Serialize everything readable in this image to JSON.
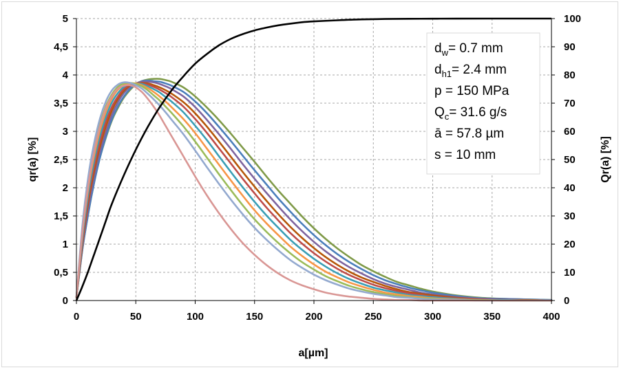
{
  "chart_data": {
    "type": "line",
    "xlabel": "a[µm]",
    "ylabel": "qr(a) [%]",
    "y2label": "Qr(a) [%]",
    "xlim": [
      0,
      400
    ],
    "ylim": [
      0,
      5
    ],
    "y2lim": [
      0,
      100
    ],
    "x_ticks": [
      "0",
      "50",
      "100",
      "150",
      "200",
      "250",
      "300",
      "350",
      "400"
    ],
    "y_ticks": [
      "0",
      "0,5",
      "1",
      "1,5",
      "2",
      "2,5",
      "3",
      "3,5",
      "4",
      "4,5",
      "5"
    ],
    "y2_ticks": [
      "0",
      "10",
      "20",
      "30",
      "40",
      "50",
      "60",
      "70",
      "80",
      "90",
      "100"
    ],
    "grid": true,
    "annotation": {
      "lines": [
        {
          "main": "d",
          "sub": "w",
          "rest": "= 0.7 mm"
        },
        {
          "main": "d",
          "sub": "h1",
          "rest": "= 2.4 mm"
        },
        {
          "main": "p = 150 MPa",
          "sub": "",
          "rest": ""
        },
        {
          "main": "Q",
          "sub": "c",
          "rest": "= 31.6 g/s"
        },
        {
          "main": "ā = 57.8 µm",
          "sub": "",
          "rest": ""
        },
        {
          "main": "s = 10 mm",
          "sub": "",
          "rest": ""
        }
      ]
    },
    "density_series": {
      "axis": "left",
      "x": [
        0,
        5,
        10,
        15,
        20,
        25,
        30,
        35,
        40,
        45,
        50,
        55,
        60,
        65,
        70,
        75,
        80,
        90,
        100,
        110,
        120,
        130,
        140,
        150,
        160,
        170,
        180,
        190,
        200,
        210,
        220,
        230,
        240,
        250,
        260,
        270,
        280,
        290,
        300,
        320,
        340,
        360,
        380,
        400
      ],
      "curves": [
        {
          "color": "#7f9a48",
          "peak_x": 73,
          "peak_y": 3.93,
          "values": [
            0.05,
            0.9,
            1.55,
            2.1,
            2.55,
            2.9,
            3.2,
            3.42,
            3.6,
            3.73,
            3.83,
            3.89,
            3.92,
            3.93,
            3.93,
            3.91,
            3.88,
            3.78,
            3.62,
            3.42,
            3.2,
            2.96,
            2.71,
            2.46,
            2.2,
            1.95,
            1.72,
            1.49,
            1.28,
            1.09,
            0.92,
            0.77,
            0.63,
            0.52,
            0.42,
            0.33,
            0.27,
            0.21,
            0.16,
            0.09,
            0.05,
            0.03,
            0.02,
            0.01
          ]
        },
        {
          "color": "#4a7ebb",
          "peak_x": 70,
          "peak_y": 3.9,
          "values": [
            0.05,
            0.9,
            1.55,
            2.1,
            2.55,
            2.92,
            3.22,
            3.45,
            3.62,
            3.75,
            3.84,
            3.89,
            3.9,
            3.89,
            3.88,
            3.85,
            3.81,
            3.7,
            3.53,
            3.32,
            3.08,
            2.83,
            2.57,
            2.31,
            2.06,
            1.81,
            1.58,
            1.36,
            1.16,
            0.98,
            0.82,
            0.68,
            0.56,
            0.45,
            0.36,
            0.29,
            0.23,
            0.18,
            0.14,
            0.08,
            0.04,
            0.03,
            0.02,
            0.01
          ]
        },
        {
          "color": "#7e649e",
          "peak_x": 66,
          "peak_y": 3.88,
          "values": [
            0.05,
            0.95,
            1.65,
            2.2,
            2.65,
            3.0,
            3.3,
            3.52,
            3.68,
            3.79,
            3.85,
            3.88,
            3.88,
            3.87,
            3.84,
            3.8,
            3.75,
            3.62,
            3.43,
            3.2,
            2.95,
            2.69,
            2.42,
            2.16,
            1.91,
            1.67,
            1.44,
            1.23,
            1.04,
            0.87,
            0.72,
            0.59,
            0.48,
            0.38,
            0.3,
            0.24,
            0.19,
            0.14,
            0.11,
            0.06,
            0.03,
            0.02,
            0.01,
            0.0
          ]
        },
        {
          "color": "#b65708",
          "peak_x": 63,
          "peak_y": 3.86,
          "values": [
            0.05,
            1.0,
            1.75,
            2.3,
            2.75,
            3.1,
            3.38,
            3.58,
            3.72,
            3.81,
            3.85,
            3.86,
            3.85,
            3.82,
            3.78,
            3.73,
            3.67,
            3.52,
            3.32,
            3.08,
            2.82,
            2.55,
            2.28,
            2.02,
            1.77,
            1.53,
            1.31,
            1.11,
            0.93,
            0.77,
            0.63,
            0.51,
            0.41,
            0.33,
            0.26,
            0.2,
            0.15,
            0.12,
            0.09,
            0.05,
            0.02,
            0.01,
            0.01,
            0.0
          ]
        },
        {
          "color": "#be4b48",
          "peak_x": 60,
          "peak_y": 3.85,
          "values": [
            0.05,
            1.05,
            1.82,
            2.38,
            2.83,
            3.18,
            3.44,
            3.62,
            3.75,
            3.82,
            3.85,
            3.85,
            3.83,
            3.79,
            3.74,
            3.68,
            3.61,
            3.44,
            3.22,
            2.97,
            2.7,
            2.43,
            2.16,
            1.9,
            1.65,
            1.42,
            1.2,
            1.01,
            0.84,
            0.69,
            0.56,
            0.45,
            0.36,
            0.28,
            0.22,
            0.17,
            0.13,
            0.1,
            0.07,
            0.04,
            0.02,
            0.01,
            0.0,
            0.0
          ]
        },
        {
          "color": "#3a9eb5",
          "peak_x": 56,
          "peak_y": 3.85,
          "values": [
            0.05,
            1.1,
            1.9,
            2.48,
            2.93,
            3.27,
            3.52,
            3.68,
            3.79,
            3.84,
            3.85,
            3.84,
            3.8,
            3.75,
            3.69,
            3.61,
            3.53,
            3.34,
            3.1,
            2.84,
            2.56,
            2.28,
            2.01,
            1.75,
            1.51,
            1.29,
            1.08,
            0.9,
            0.74,
            0.6,
            0.48,
            0.38,
            0.3,
            0.23,
            0.18,
            0.14,
            0.1,
            0.08,
            0.06,
            0.03,
            0.01,
            0.01,
            0.0,
            0.0
          ]
        },
        {
          "color": "#f79646",
          "peak_x": 52,
          "peak_y": 3.85,
          "values": [
            0.05,
            1.18,
            2.0,
            2.58,
            3.03,
            3.36,
            3.59,
            3.74,
            3.82,
            3.85,
            3.85,
            3.82,
            3.77,
            3.7,
            3.62,
            3.53,
            3.43,
            3.22,
            2.97,
            2.69,
            2.41,
            2.13,
            1.86,
            1.6,
            1.37,
            1.16,
            0.96,
            0.79,
            0.64,
            0.51,
            0.41,
            0.32,
            0.25,
            0.19,
            0.14,
            0.11,
            0.08,
            0.06,
            0.04,
            0.02,
            0.01,
            0.0,
            0.0,
            0.0
          ]
        },
        {
          "color": "#9bbb59",
          "peak_x": 48,
          "peak_y": 3.86,
          "values": [
            0.05,
            1.25,
            2.1,
            2.7,
            3.14,
            3.45,
            3.66,
            3.79,
            3.85,
            3.86,
            3.84,
            3.8,
            3.73,
            3.64,
            3.55,
            3.44,
            3.33,
            3.09,
            2.82,
            2.53,
            2.24,
            1.96,
            1.69,
            1.44,
            1.22,
            1.02,
            0.84,
            0.68,
            0.55,
            0.43,
            0.34,
            0.26,
            0.2,
            0.15,
            0.11,
            0.08,
            0.06,
            0.04,
            0.03,
            0.01,
            0.01,
            0.0,
            0.0,
            0.0
          ]
        },
        {
          "color": "#93a9cf",
          "peak_x": 44,
          "peak_y": 3.87,
          "values": [
            0.05,
            1.32,
            2.2,
            2.8,
            3.24,
            3.54,
            3.73,
            3.83,
            3.87,
            3.86,
            3.82,
            3.76,
            3.67,
            3.57,
            3.46,
            3.34,
            3.21,
            2.95,
            2.66,
            2.36,
            2.07,
            1.79,
            1.53,
            1.29,
            1.08,
            0.89,
            0.72,
            0.58,
            0.46,
            0.36,
            0.28,
            0.21,
            0.16,
            0.12,
            0.09,
            0.06,
            0.05,
            0.03,
            0.02,
            0.01,
            0.0,
            0.0,
            0.0,
            0.0
          ]
        },
        {
          "color": "#d99694",
          "peak_x": 46,
          "peak_y": 3.82,
          "values": [
            0.05,
            1.2,
            2.05,
            2.65,
            3.1,
            3.42,
            3.63,
            3.76,
            3.81,
            3.82,
            3.78,
            3.7,
            3.58,
            3.44,
            3.28,
            3.1,
            2.92,
            2.56,
            2.2,
            1.86,
            1.55,
            1.27,
            1.02,
            0.81,
            0.63,
            0.48,
            0.36,
            0.27,
            0.2,
            0.14,
            0.1,
            0.07,
            0.05,
            0.03,
            0.02,
            0.01,
            0.01,
            0.0,
            0.0,
            0.0,
            0.0,
            0.0,
            0.0,
            0.0
          ]
        }
      ]
    },
    "cumulative_series": {
      "axis": "right",
      "color": "#000000",
      "x": [
        0,
        5,
        10,
        15,
        20,
        25,
        30,
        40,
        50,
        60,
        70,
        80,
        90,
        100,
        110,
        120,
        130,
        140,
        150,
        160,
        170,
        180,
        190,
        200,
        220,
        240,
        260,
        280,
        300,
        320,
        350,
        400
      ],
      "values": [
        0,
        5,
        10.5,
        16.5,
        22.5,
        28.5,
        34.5,
        44.5,
        53.5,
        61.5,
        68.5,
        74.5,
        79.5,
        84,
        87.5,
        90.5,
        92.8,
        94.5,
        95.8,
        96.8,
        97.6,
        98.2,
        98.7,
        99.0,
        99.4,
        99.7,
        99.85,
        99.92,
        99.96,
        99.98,
        99.99,
        100
      ]
    }
  }
}
